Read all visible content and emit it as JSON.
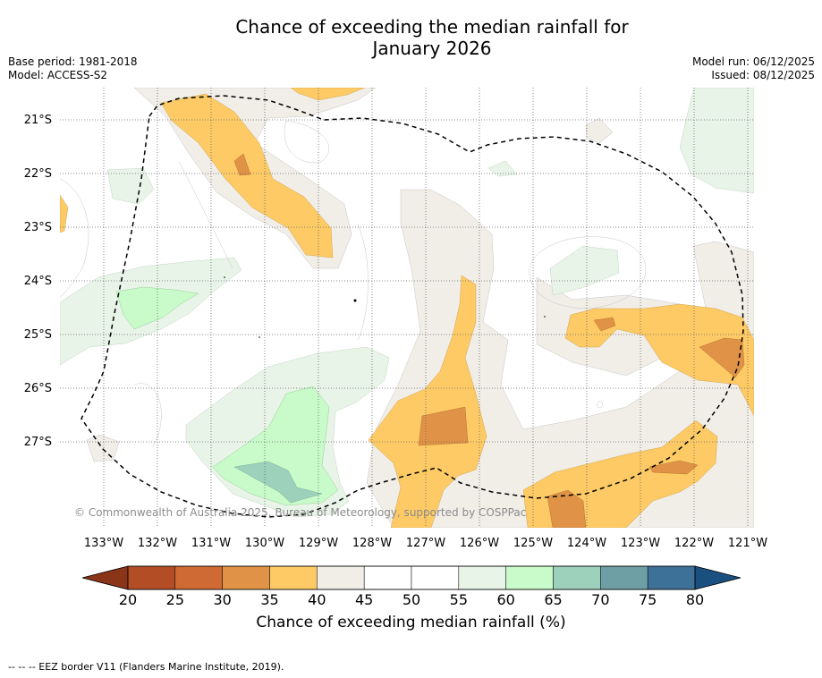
{
  "title": {
    "line1": "Chance of exceeding the median rainfall for",
    "line2": "January 2026"
  },
  "meta": {
    "base_period": "Base period: 1981-2018",
    "model": "Model: ACCESS-S2",
    "model_run": "Model run: 06/12/2025",
    "issued": "Issued: 08/12/2025"
  },
  "map": {
    "copyright": "© Commonwealth of Australia 2025, Bureau of Meteorology, supported by COSPPac",
    "lat_labels": [
      "21°S",
      "22°S",
      "23°S",
      "24°S",
      "25°S",
      "26°S",
      "27°S"
    ],
    "lon_labels": [
      "133°W",
      "132°W",
      "131°W",
      "130°W",
      "129°W",
      "128°W",
      "127°W",
      "126°W",
      "125°W",
      "124°W",
      "123°W",
      "122°W",
      "121°W"
    ]
  },
  "colorbar": {
    "ticks": [
      "20",
      "25",
      "30",
      "35",
      "40",
      "45",
      "50",
      "55",
      "60",
      "65",
      "70",
      "75",
      "80"
    ],
    "colors": [
      "#b34d26",
      "#cf6a35",
      "#e09346",
      "#fdca65",
      "#f1ede7",
      "#ffffff",
      "#ffffff",
      "#e9f4e8",
      "#c8fbc9",
      "#9dd1bb",
      "#6e9fa4",
      "#3e7198"
    ],
    "under_color": "#8a3418",
    "over_color": "#1a5080",
    "label": "Chance of exceeding median rainfall (%)"
  },
  "footer": "--  --  -- EEZ border V11 (Flanders Marine Institute, 2019)."
}
